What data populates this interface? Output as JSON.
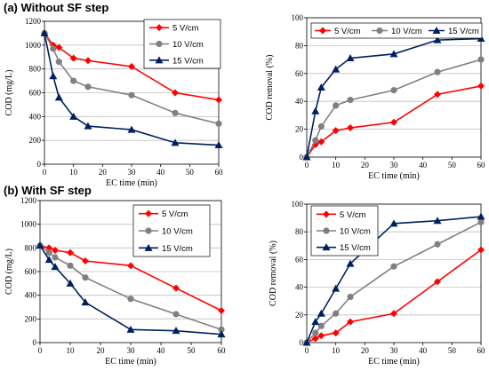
{
  "panels": [
    {
      "label": "(a) Without SF step"
    },
    {
      "label": "(b) With SF step"
    }
  ],
  "chart_data": [
    {
      "type": "line",
      "xlabel": "EC time (min)",
      "ylabel": "COD (mg/L)",
      "xlim": [
        0,
        60
      ],
      "xticks": [
        0,
        10,
        20,
        30,
        40,
        50,
        60
      ],
      "ylim": [
        0,
        1200
      ],
      "yticks": [
        0,
        200,
        400,
        600,
        800,
        1000,
        1200
      ],
      "legend_position": "top-right",
      "series": [
        {
          "name": "5 V/cm",
          "color": "#ff0000",
          "marker": "diamond",
          "x": [
            0,
            3,
            5,
            10,
            15,
            30,
            45,
            60
          ],
          "y": [
            1100,
            1000,
            980,
            890,
            870,
            820,
            600,
            540
          ]
        },
        {
          "name": "10 V/cm",
          "color": "#808080",
          "marker": "circle",
          "x": [
            0,
            3,
            5,
            10,
            15,
            30,
            45,
            60
          ],
          "y": [
            1100,
            970,
            860,
            700,
            650,
            580,
            430,
            340
          ]
        },
        {
          "name": "15 V/cm",
          "color": "#002060",
          "marker": "triangle",
          "x": [
            0,
            3,
            5,
            10,
            15,
            30,
            45,
            60
          ],
          "y": [
            1100,
            740,
            560,
            400,
            320,
            290,
            180,
            160
          ]
        }
      ]
    },
    {
      "type": "line",
      "xlabel": "EC time (min)",
      "ylabel": "COD removal (%)",
      "xlim": [
        0,
        60
      ],
      "xticks": [
        0,
        10,
        20,
        30,
        40,
        50,
        60
      ],
      "ylim": [
        0,
        100
      ],
      "yticks": [
        0,
        20,
        40,
        60,
        80,
        100
      ],
      "legend_position": "top",
      "series": [
        {
          "name": "5 V/cm",
          "color": "#ff0000",
          "marker": "diamond",
          "x": [
            0,
            3,
            5,
            10,
            15,
            30,
            45,
            60
          ],
          "y": [
            0,
            9,
            11,
            19,
            21,
            25,
            45,
            51
          ]
        },
        {
          "name": "10 V/cm",
          "color": "#808080",
          "marker": "circle",
          "x": [
            0,
            3,
            5,
            10,
            15,
            30,
            45,
            60
          ],
          "y": [
            0,
            12,
            22,
            37,
            41,
            48,
            61,
            70
          ]
        },
        {
          "name": "15 V/cm",
          "color": "#002060",
          "marker": "triangle",
          "x": [
            0,
            3,
            5,
            10,
            15,
            30,
            45,
            60
          ],
          "y": [
            0,
            33,
            50,
            63,
            71,
            74,
            84,
            85
          ]
        }
      ]
    },
    {
      "type": "line",
      "xlabel": "EC time (min)",
      "ylabel": "COD (mg/L)",
      "xlim": [
        0,
        60
      ],
      "xticks": [
        0,
        10,
        20,
        30,
        40,
        50,
        60
      ],
      "ylim": [
        0,
        1200
      ],
      "yticks": [
        0,
        200,
        400,
        600,
        800,
        1000,
        1200
      ],
      "legend_position": "top-right",
      "series": [
        {
          "name": "5 V/cm",
          "color": "#ff0000",
          "marker": "diamond",
          "x": [
            0,
            3,
            5,
            10,
            15,
            30,
            45,
            60
          ],
          "y": [
            820,
            800,
            780,
            760,
            690,
            650,
            460,
            270
          ]
        },
        {
          "name": "10 V/cm",
          "color": "#808080",
          "marker": "circle",
          "x": [
            0,
            3,
            5,
            10,
            15,
            30,
            45,
            60
          ],
          "y": [
            820,
            760,
            720,
            650,
            550,
            370,
            240,
            110
          ]
        },
        {
          "name": "15 V/cm",
          "color": "#002060",
          "marker": "triangle",
          "x": [
            0,
            3,
            5,
            10,
            15,
            30,
            45,
            60
          ],
          "y": [
            820,
            700,
            640,
            500,
            340,
            110,
            100,
            70
          ]
        }
      ]
    },
    {
      "type": "line",
      "xlabel": "EC time (min)",
      "ylabel": "COD removal (%)",
      "xlim": [
        0,
        60
      ],
      "xticks": [
        0,
        10,
        20,
        30,
        40,
        50,
        60
      ],
      "ylim": [
        0,
        100
      ],
      "yticks": [
        0,
        20,
        40,
        60,
        80,
        100
      ],
      "legend_position": "top-left",
      "series": [
        {
          "name": "5 V/cm",
          "color": "#ff0000",
          "marker": "diamond",
          "x": [
            0,
            3,
            5,
            10,
            15,
            30,
            45,
            60
          ],
          "y": [
            0,
            3,
            5,
            7,
            15,
            21,
            44,
            67
          ]
        },
        {
          "name": "10 V/cm",
          "color": "#808080",
          "marker": "circle",
          "x": [
            0,
            3,
            5,
            10,
            15,
            30,
            45,
            60
          ],
          "y": [
            0,
            7,
            12,
            21,
            33,
            55,
            71,
            87
          ]
        },
        {
          "name": "15 V/cm",
          "color": "#002060",
          "marker": "triangle",
          "x": [
            0,
            3,
            5,
            10,
            15,
            30,
            45,
            60
          ],
          "y": [
            0,
            15,
            21,
            39,
            57,
            86,
            88,
            91
          ]
        }
      ]
    }
  ]
}
